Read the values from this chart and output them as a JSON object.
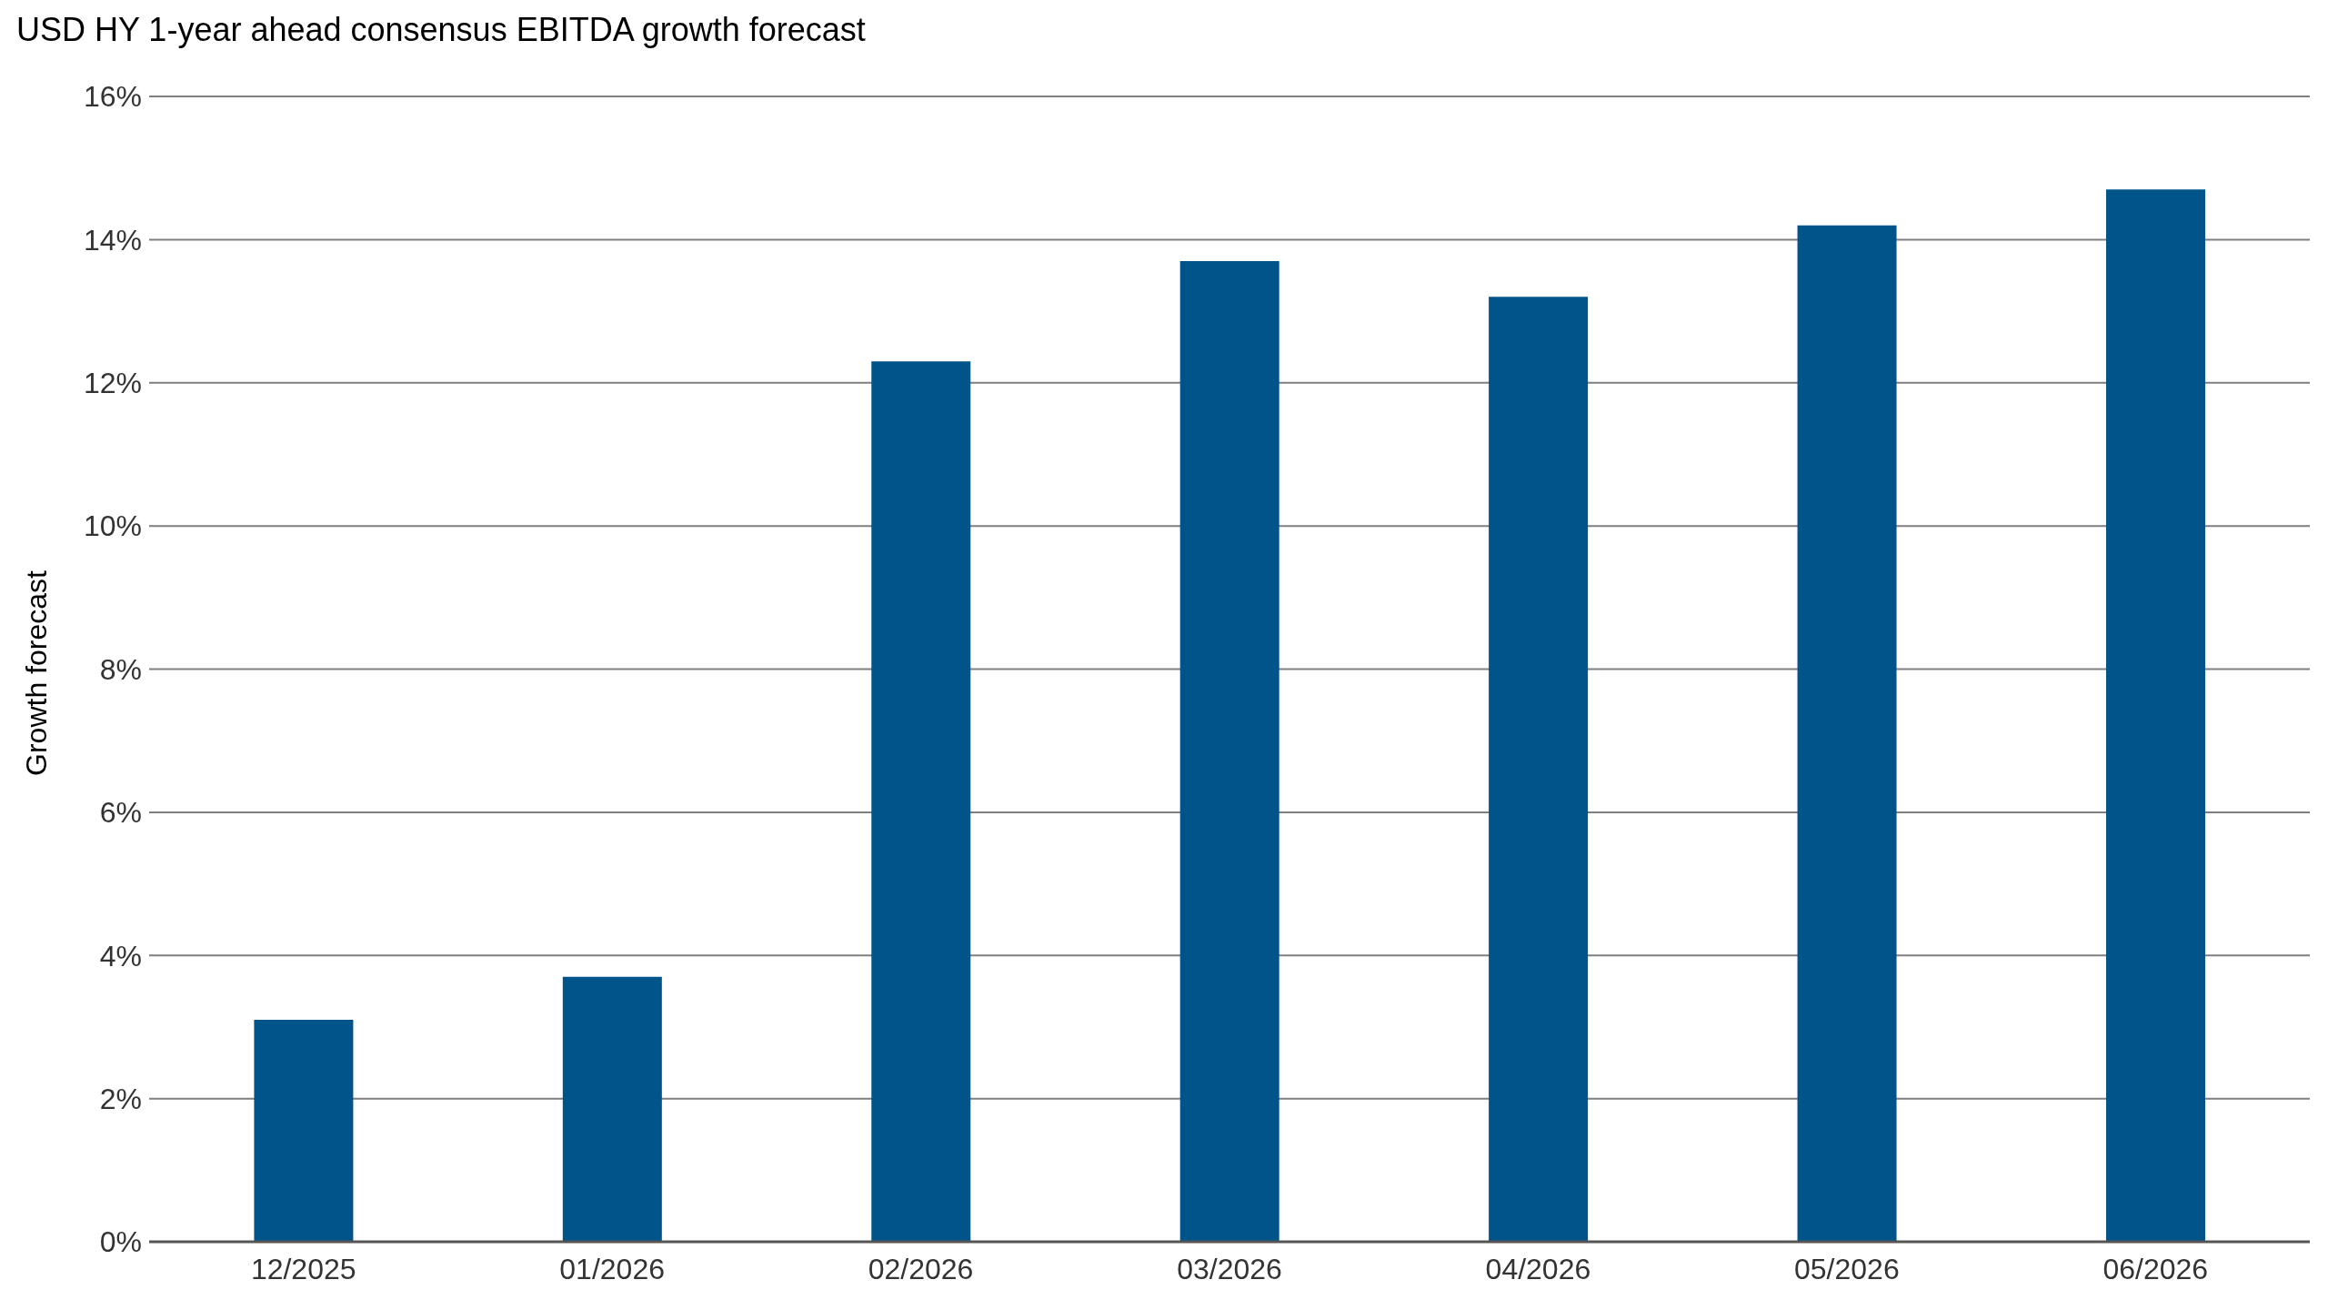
{
  "chart_data": {
    "type": "bar",
    "title": "USD HY 1-year ahead consensus EBITDA growth forecast",
    "ylabel": "Growth forecast",
    "categories": [
      "12/2025",
      "01/2026",
      "02/2026",
      "03/2026",
      "04/2026",
      "05/2026",
      "06/2026"
    ],
    "values": [
      3.1,
      3.7,
      12.3,
      13.7,
      13.2,
      14.2,
      14.7
    ],
    "color": "#00548a",
    "ylim": [
      0,
      16
    ],
    "yticks": [
      {
        "value": 0,
        "label": "0%"
      },
      {
        "value": 2,
        "label": "2%"
      },
      {
        "value": 4,
        "label": "4%"
      },
      {
        "value": 6,
        "label": "6%"
      },
      {
        "value": 8,
        "label": "8%"
      },
      {
        "value": 10,
        "label": "10%"
      },
      {
        "value": 12,
        "label": "12%"
      },
      {
        "value": 14,
        "label": "14%"
      },
      {
        "value": 16,
        "label": "16%"
      }
    ],
    "grid": "y",
    "legend": false
  }
}
